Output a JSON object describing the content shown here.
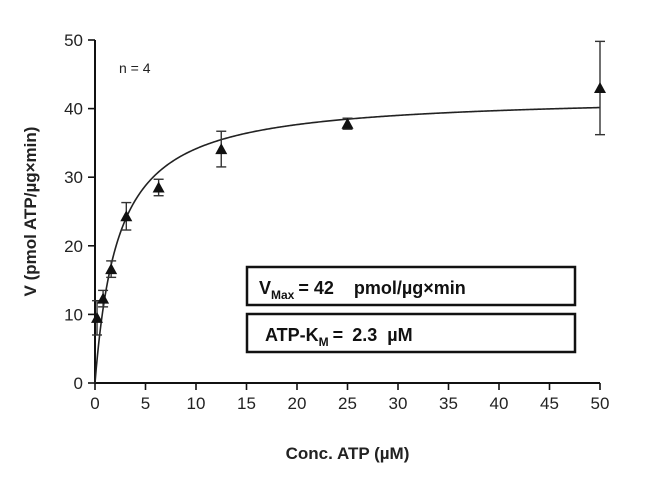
{
  "chart_data": {
    "type": "scatter",
    "xlabel": "Conc. ATP (µM)",
    "ylabel": "V (pmol ATP/µg×min)",
    "xlim": [
      0,
      50
    ],
    "ylim": [
      0,
      50
    ],
    "xticks": [
      0,
      5,
      10,
      15,
      20,
      25,
      30,
      35,
      40,
      45,
      50
    ],
    "yticks": [
      0,
      10,
      20,
      30,
      40,
      50
    ],
    "grid": false,
    "annotation": "n = 4",
    "series": [
      {
        "marker": "triangle",
        "x": [
          0.2,
          0.8,
          1.6,
          3.1,
          6.3,
          12.5,
          25,
          50
        ],
        "y": [
          9.5,
          12.3,
          16.6,
          24.3,
          28.5,
          34.1,
          37.8,
          43.0
        ],
        "err": [
          2.5,
          1.2,
          1.2,
          2.0,
          1.2,
          2.6,
          0.8,
          6.8
        ]
      }
    ],
    "fit": {
      "model": "michaelis-menten",
      "vmax": 42,
      "km": 2.3
    },
    "result_boxes": {
      "vmax": {
        "symbol": "V",
        "subscript": "Max",
        "equals": "= 42",
        "unit": "pmol/µg×min"
      },
      "km": {
        "prefix": "ATP-K",
        "subscript": "M",
        "equals": "= ",
        "value": "2.3",
        "unit": "µM"
      }
    },
    "colors": {
      "axis": "#111111",
      "marker": "#111111",
      "curve": "#222222"
    }
  }
}
